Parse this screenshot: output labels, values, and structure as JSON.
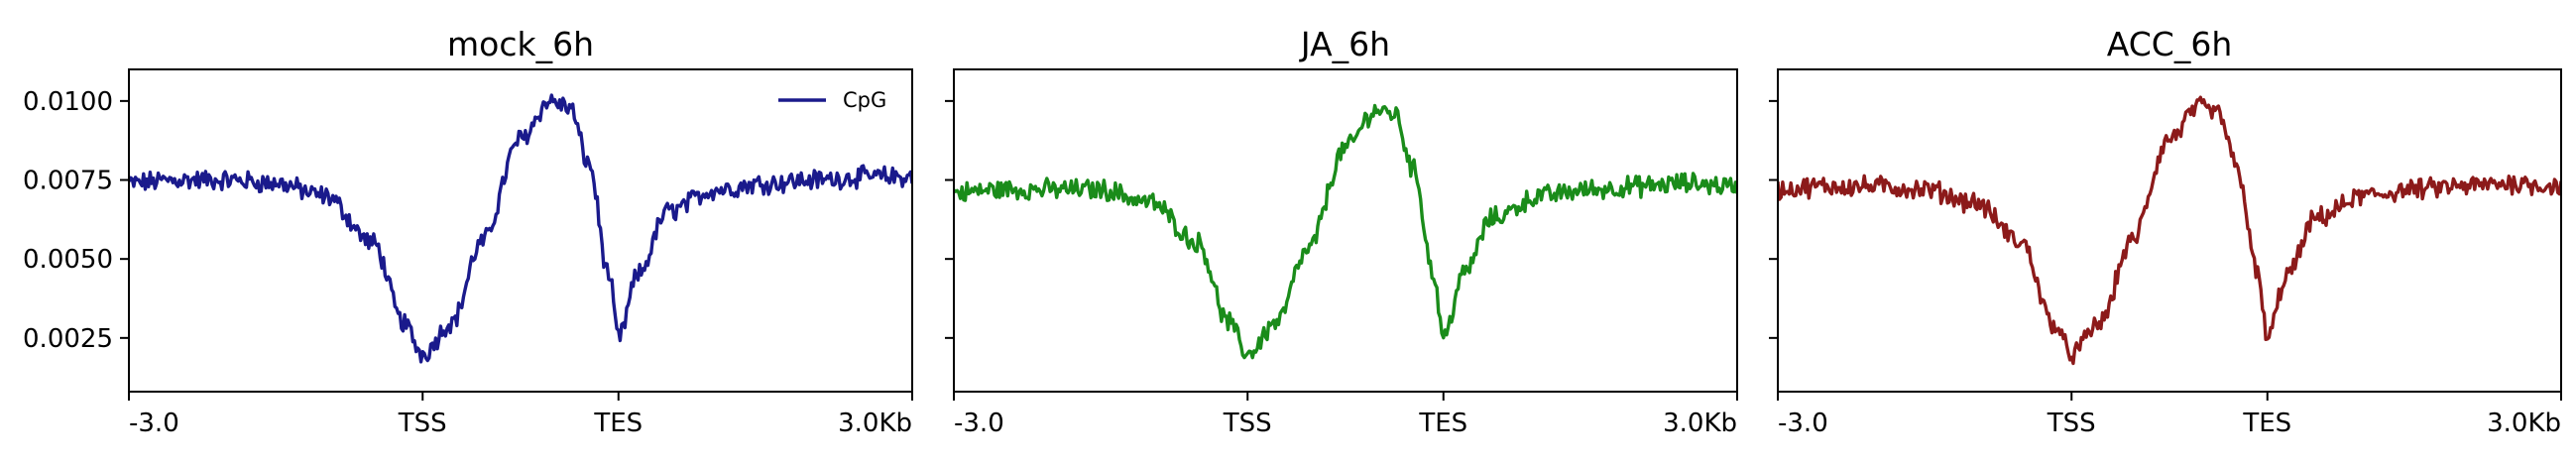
{
  "figure": {
    "colors": {
      "mock": "#1a1a8c",
      "JA": "#1a8c1a",
      "ACC": "#8c1a1a"
    }
  },
  "chart_data": [
    {
      "type": "line",
      "title": "mock_6h",
      "xlabel": "",
      "ylabel": "",
      "x_tick_labels": [
        "-3.0",
        "TSS",
        "TES",
        "3.0Kb"
      ],
      "x_tick_positions": [
        0,
        3000,
        5000,
        8000
      ],
      "xlim": [
        0,
        8000
      ],
      "ylim": [
        0.0008,
        0.011
      ],
      "y_tick_values": [
        0.0025,
        0.005,
        0.0075,
        0.01
      ],
      "y_tick_labels": [
        "0.0025",
        "0.0050",
        "0.0075",
        "0.0100"
      ],
      "grid": false,
      "legend": {
        "placement": "top-right",
        "entries": [
          "CpG"
        ]
      },
      "series": [
        {
          "name": "CpG",
          "color": "#1a1a8c",
          "x": [
            0,
            500,
            1000,
            1500,
            2000,
            2500,
            2800,
            3000,
            3300,
            3600,
            4000,
            4300,
            4500,
            4700,
            4900,
            5000,
            5200,
            5500,
            6000,
            6500,
            7000,
            7500,
            8000
          ],
          "y": [
            0.0074,
            0.0075,
            0.0075,
            0.0074,
            0.007,
            0.0055,
            0.003,
            0.002,
            0.003,
            0.0055,
            0.0088,
            0.01,
            0.0098,
            0.008,
            0.0045,
            0.0025,
            0.0045,
            0.0065,
            0.0072,
            0.0074,
            0.0075,
            0.0076,
            0.0076
          ]
        }
      ]
    },
    {
      "type": "line",
      "title": "JA_6h",
      "xlabel": "",
      "ylabel": "",
      "x_tick_labels": [
        "-3.0",
        "TSS",
        "TES",
        "3.0Kb"
      ],
      "x_tick_positions": [
        0,
        3000,
        5000,
        8000
      ],
      "xlim": [
        0,
        8000
      ],
      "ylim": [
        0.0008,
        0.011
      ],
      "y_tick_values": [
        0.0025,
        0.005,
        0.0075,
        0.01
      ],
      "grid": false,
      "series": [
        {
          "name": "",
          "color": "#1a8c1a",
          "x": [
            0,
            500,
            1000,
            1500,
            2000,
            2500,
            2800,
            3000,
            3300,
            3600,
            4000,
            4300,
            4500,
            4700,
            4900,
            5000,
            5200,
            5500,
            6000,
            6500,
            7000,
            7500,
            8000
          ],
          "y": [
            0.0071,
            0.0072,
            0.0072,
            0.0072,
            0.0068,
            0.0055,
            0.003,
            0.002,
            0.003,
            0.0052,
            0.0085,
            0.0097,
            0.0096,
            0.0078,
            0.0045,
            0.0025,
            0.0045,
            0.0063,
            0.007,
            0.0072,
            0.0073,
            0.0074,
            0.0073
          ]
        }
      ]
    },
    {
      "type": "line",
      "title": "ACC_6h",
      "xlabel": "",
      "ylabel": "",
      "x_tick_labels": [
        "-3.0",
        "TSS",
        "TES",
        "3.0Kb"
      ],
      "x_tick_positions": [
        0,
        3000,
        5000,
        8000
      ],
      "xlim": [
        0,
        8000
      ],
      "ylim": [
        0.0008,
        0.011
      ],
      "y_tick_values": [
        0.0025,
        0.005,
        0.0075,
        0.01
      ],
      "grid": false,
      "series": [
        {
          "name": "",
          "color": "#8c1a1a",
          "x": [
            0,
            500,
            1000,
            1500,
            2000,
            2500,
            2800,
            3000,
            3300,
            3600,
            4000,
            4300,
            4500,
            4700,
            4900,
            5000,
            5200,
            5500,
            6000,
            6500,
            7000,
            7500,
            8000
          ],
          "y": [
            0.0072,
            0.0073,
            0.0073,
            0.0072,
            0.0068,
            0.0055,
            0.003,
            0.002,
            0.003,
            0.0055,
            0.0088,
            0.0098,
            0.0096,
            0.0078,
            0.0045,
            0.0025,
            0.0045,
            0.0063,
            0.007,
            0.0072,
            0.0073,
            0.0074,
            0.0073
          ]
        }
      ]
    }
  ]
}
